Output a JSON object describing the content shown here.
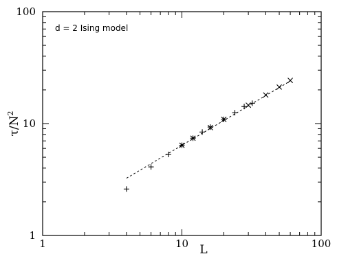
{
  "chart_data": {
    "type": "scatter",
    "xlabel": "L",
    "ylabel": "τ/N",
    "ylabel_superscript": "2",
    "annotation": "d = 2 Ising model",
    "x_scale": "log",
    "y_scale": "log",
    "xlim": [
      1,
      100
    ],
    "ylim": [
      1,
      100
    ],
    "x_ticks": [
      1,
      10,
      100
    ],
    "x_tick_labels": [
      "1",
      "10",
      "100"
    ],
    "y_ticks": [
      1,
      10,
      100
    ],
    "y_tick_labels": [
      "1",
      "10",
      "100"
    ],
    "grid": false,
    "series": [
      {
        "marker": "plus",
        "x": [
          4,
          6,
          8,
          10,
          12,
          14,
          16,
          20,
          24,
          28,
          32
        ],
        "y": [
          2.6,
          4.1,
          5.3,
          6.4,
          7.4,
          8.4,
          9.3,
          10.9,
          12.5,
          14.2,
          15.2
        ]
      },
      {
        "marker": "cross",
        "x": [
          10,
          12,
          16,
          20,
          30,
          40,
          50,
          60
        ],
        "y": [
          6.4,
          7.4,
          9.2,
          10.9,
          14.6,
          18.0,
          21.2,
          24.3
        ]
      },
      {
        "marker": "none",
        "line_style": "dashed",
        "x": [
          4,
          60
        ],
        "y": [
          3.25,
          24.0
        ]
      }
    ]
  }
}
